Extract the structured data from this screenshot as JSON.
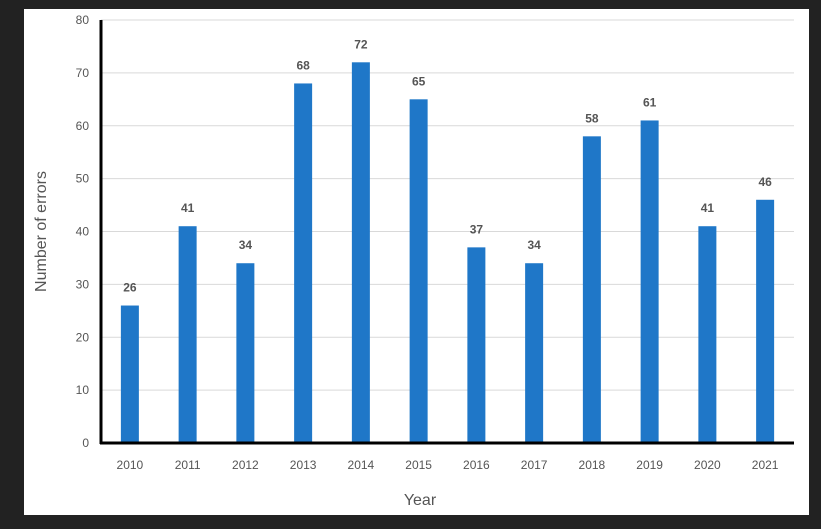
{
  "chart_data": {
    "type": "bar",
    "categories": [
      "2010",
      "2011",
      "2012",
      "2013",
      "2014",
      "2015",
      "2016",
      "2017",
      "2018",
      "2019",
      "2020",
      "2021"
    ],
    "values": [
      26,
      41,
      34,
      68,
      72,
      65,
      37,
      34,
      58,
      61,
      41,
      46
    ],
    "title": "",
    "xlabel": "Year",
    "ylabel": "Number of errors",
    "ylim": [
      0,
      80
    ],
    "yticks": [
      0,
      10,
      20,
      30,
      40,
      50,
      60,
      70,
      80
    ],
    "grid": true,
    "data_labels": true,
    "bar_color": "#1F77C8"
  }
}
